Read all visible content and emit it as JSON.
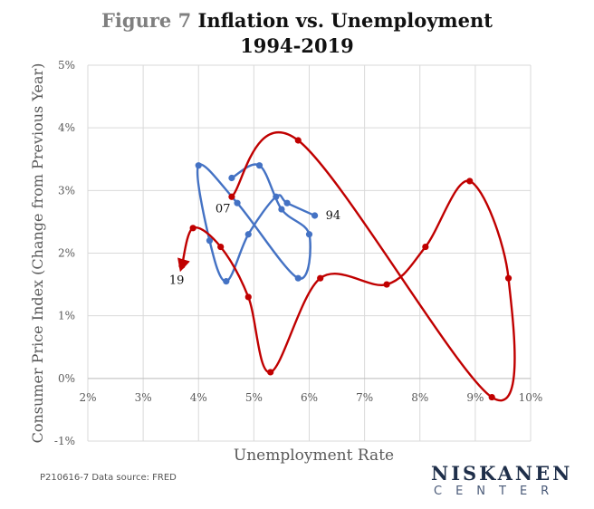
{
  "header": {
    "figure_label": "Figure 7",
    "title_rest": "Inflation vs. Unemployment",
    "subtitle": "1994-2019"
  },
  "footer": {
    "note": "P210616-7  Data source: FRED",
    "logo_main": "NISKANEN",
    "logo_sub": "CENTER"
  },
  "colors": {
    "blue_series": "#4472c4",
    "red_series": "#c00000",
    "grid": "#d9d9d9",
    "text": "#595959"
  },
  "chart_data": {
    "type": "scatter",
    "title": "Inflation vs. Unemployment 1994-2019",
    "xlabel": "Unemployment Rate",
    "ylabel": "Consumer Price Index (Change from Previous Year)",
    "xlim": [
      2,
      10
    ],
    "ylim": [
      -1,
      5
    ],
    "x_ticks": [
      "2%",
      "3%",
      "4%",
      "5%",
      "6%",
      "7%",
      "8%",
      "9%",
      "10%"
    ],
    "y_ticks": [
      "-1%",
      "0%",
      "1%",
      "2%",
      "3%",
      "4%",
      "5%"
    ],
    "grid": true,
    "series": [
      {
        "color": "#4472c4",
        "x": [
          6.1,
          5.6,
          5.4,
          4.9,
          4.5,
          4.2,
          4.0,
          4.7,
          5.8,
          6.0,
          5.5,
          5.1,
          4.6
        ],
        "y": [
          2.6,
          2.8,
          2.9,
          2.3,
          1.55,
          2.2,
          3.4,
          2.8,
          1.6,
          2.3,
          2.7,
          3.4,
          3.2
        ]
      },
      {
        "color": "#c00000",
        "x": [
          4.6,
          5.8,
          9.3,
          9.6,
          8.9,
          8.1,
          7.4,
          6.2,
          5.3,
          4.9,
          4.4,
          3.9,
          3.7
        ],
        "y": [
          2.9,
          3.8,
          -0.3,
          1.6,
          3.15,
          2.1,
          1.5,
          1.6,
          0.1,
          1.3,
          2.1,
          2.4,
          1.8
        ]
      }
    ],
    "annotations": [
      {
        "text": "94",
        "x": 6.1,
        "y": 2.6
      },
      {
        "text": "07",
        "x": 4.6,
        "y": 2.9
      },
      {
        "text": "19",
        "x": 3.7,
        "y": 1.8
      }
    ]
  }
}
